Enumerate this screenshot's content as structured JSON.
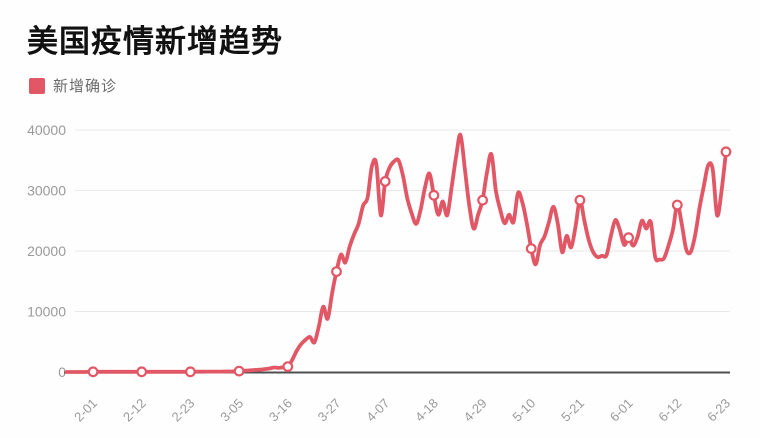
{
  "chart_data": {
    "type": "line",
    "title": "美国疫情新增趋势",
    "legend_position": "top-left",
    "grid": "horizontal",
    "xlabel": "",
    "ylabel": "",
    "ylim": [
      0,
      40000
    ],
    "y_ticks": [
      0,
      10000,
      20000,
      30000,
      40000
    ],
    "x_tick_labels": [
      "2-01",
      "2-12",
      "2-23",
      "3-05",
      "3-16",
      "3-27",
      "4-07",
      "4-18",
      "4-29",
      "5-10",
      "5-21",
      "6-01",
      "6-12",
      "6-23"
    ],
    "colors": {
      "line": "#e15765",
      "marker_fill": "#ffffff",
      "grid": "#e8e8e8",
      "axis": "#4f4f4f",
      "tick_text": "#9a9a9a"
    },
    "x": [
      "1-26",
      "1-27",
      "1-28",
      "1-29",
      "1-30",
      "1-31",
      "2-01",
      "2-02",
      "2-03",
      "2-04",
      "2-05",
      "2-06",
      "2-07",
      "2-08",
      "2-09",
      "2-10",
      "2-11",
      "2-12",
      "2-13",
      "2-14",
      "2-15",
      "2-16",
      "2-17",
      "2-18",
      "2-19",
      "2-20",
      "2-21",
      "2-22",
      "2-23",
      "2-24",
      "2-25",
      "2-26",
      "2-27",
      "2-28",
      "2-29",
      "3-01",
      "3-02",
      "3-03",
      "3-04",
      "3-05",
      "3-06",
      "3-07",
      "3-08",
      "3-09",
      "3-10",
      "3-11",
      "3-12",
      "3-13",
      "3-14",
      "3-15",
      "3-16",
      "3-17",
      "3-18",
      "3-19",
      "3-20",
      "3-21",
      "3-22",
      "3-23",
      "3-24",
      "3-25",
      "3-26",
      "3-27",
      "3-28",
      "3-29",
      "3-30",
      "3-31",
      "4-01",
      "4-02",
      "4-03",
      "4-04",
      "4-05",
      "4-06",
      "4-07",
      "4-08",
      "4-09",
      "4-10",
      "4-11",
      "4-12",
      "4-13",
      "4-14",
      "4-15",
      "4-16",
      "4-17",
      "4-18",
      "4-19",
      "4-20",
      "4-21",
      "4-22",
      "4-23",
      "4-24",
      "4-25",
      "4-26",
      "4-27",
      "4-28",
      "4-29",
      "4-30",
      "5-01",
      "5-02",
      "5-03",
      "5-04",
      "5-05",
      "5-06",
      "5-07",
      "5-08",
      "5-09",
      "5-10",
      "5-11",
      "5-12",
      "5-13",
      "5-14",
      "5-15",
      "5-16",
      "5-17",
      "5-18",
      "5-19",
      "5-20",
      "5-21",
      "5-22",
      "5-23",
      "5-24",
      "5-25",
      "5-26",
      "5-27",
      "5-28",
      "5-29",
      "5-30",
      "5-31",
      "6-01",
      "6-02",
      "6-03",
      "6-04",
      "6-05",
      "6-06",
      "6-07",
      "6-08",
      "6-09",
      "6-10",
      "6-11",
      "6-12",
      "6-13",
      "6-14",
      "6-15",
      "6-16",
      "6-17",
      "6-18",
      "6-19",
      "6-20",
      "6-21",
      "6-22",
      "6-23"
    ],
    "series": [
      {
        "name": "新增确诊",
        "color": "#e15765",
        "values": [
          0,
          0,
          0,
          0,
          0,
          30,
          30,
          30,
          30,
          30,
          30,
          30,
          30,
          30,
          30,
          30,
          30,
          30,
          30,
          30,
          30,
          30,
          30,
          30,
          30,
          30,
          30,
          30,
          40,
          50,
          50,
          50,
          60,
          60,
          70,
          70,
          80,
          90,
          110,
          150,
          200,
          250,
          300,
          350,
          420,
          500,
          600,
          750,
          680,
          800,
          900,
          2000,
          3500,
          4600,
          5300,
          5800,
          4900,
          7500,
          10800,
          8800,
          13000,
          16600,
          19400,
          18100,
          20800,
          22800,
          24500,
          27500,
          28800,
          34000,
          34400,
          25900,
          31500,
          33800,
          34800,
          35000,
          32500,
          28700,
          26200,
          24500,
          26800,
          30500,
          32800,
          29200,
          26000,
          28200,
          25900,
          30500,
          35500,
          39200,
          33500,
          27500,
          23700,
          26000,
          28400,
          33000,
          36000,
          30000,
          26800,
          24600,
          26000,
          24800,
          29600,
          28000,
          24600,
          20400,
          17800,
          21000,
          22400,
          24800,
          27300,
          24500,
          19800,
          22500,
          20600,
          24000,
          28400,
          25000,
          21800,
          19800,
          19000,
          19200,
          19300,
          22500,
          25100,
          23500,
          21000,
          22200,
          20900,
          22300,
          25000,
          23700,
          24800,
          19000,
          18600,
          18800,
          20900,
          23500,
          27600,
          24500,
          20300,
          19800,
          22500,
          27000,
          30800,
          34200,
          33500,
          25900,
          30000,
          36400
        ]
      }
    ],
    "marker_dates": [
      "2-01",
      "2-12",
      "2-23",
      "3-05",
      "3-16",
      "3-27",
      "4-07",
      "4-18",
      "4-29",
      "5-10",
      "5-21",
      "6-01",
      "6-12",
      "6-23"
    ]
  }
}
